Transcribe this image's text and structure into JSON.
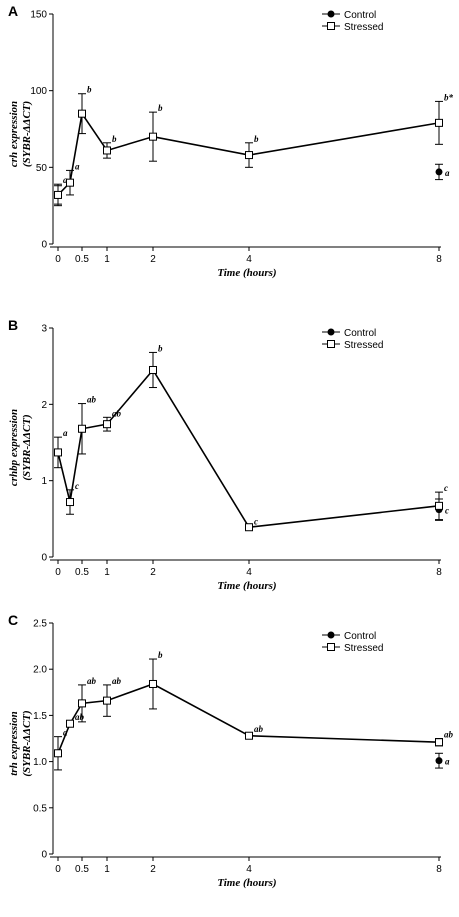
{
  "chart_data": [
    {
      "panel": "A",
      "type": "line",
      "xlabel": "Time (hours)",
      "ylabel_line1": "crh expression",
      "ylabel_line2": "(SYBR-ΔΔCT)",
      "ylim": [
        0,
        150
      ],
      "yticks": [
        0,
        50,
        100,
        150
      ],
      "xticks": [
        0,
        0.5,
        1,
        2,
        4,
        8
      ],
      "xtick_labels": [
        "0",
        "0.5",
        "1",
        "2",
        "4",
        "8"
      ],
      "legend": [
        "Control",
        "Stressed"
      ],
      "series": [
        {
          "name": "Control",
          "marker": "filled-circle",
          "points": [
            {
              "x": 0,
              "y": 32,
              "err": 6,
              "label": ""
            },
            {
              "x": 8,
              "y": 47,
              "err": 5,
              "label": "a"
            }
          ]
        },
        {
          "name": "Stressed",
          "marker": "open-square",
          "points": [
            {
              "x": 0,
              "y": 32,
              "err": 7,
              "label": "a"
            },
            {
              "x": 0.25,
              "y": 40,
              "err": 8,
              "label": "a"
            },
            {
              "x": 0.5,
              "y": 85,
              "err": 13,
              "label": "b"
            },
            {
              "x": 1,
              "y": 61,
              "err": 5,
              "label": "b"
            },
            {
              "x": 2,
              "y": 70,
              "err": 16,
              "label": "b"
            },
            {
              "x": 4,
              "y": 58,
              "err": 8,
              "label": "b"
            },
            {
              "x": 8,
              "y": 79,
              "err": 14,
              "label": "b*"
            }
          ]
        }
      ]
    },
    {
      "panel": "B",
      "type": "line",
      "xlabel": "Time (hours)",
      "ylabel_line1": "crhbp expression",
      "ylabel_line2": "(SYBR-ΔΔCT)",
      "ylim": [
        0,
        3
      ],
      "yticks": [
        0,
        1,
        2,
        3
      ],
      "xticks": [
        0,
        0.5,
        1,
        2,
        4,
        8
      ],
      "xtick_labels": [
        "0",
        "0.5",
        "1",
        "2",
        "4",
        "8"
      ],
      "legend": [
        "Control",
        "Stressed"
      ],
      "series": [
        {
          "name": "Control",
          "marker": "filled-circle",
          "points": [
            {
              "x": 8,
              "y": 0.62,
              "err": 0.14,
              "label": "c"
            }
          ]
        },
        {
          "name": "Stressed",
          "marker": "open-square",
          "points": [
            {
              "x": 0,
              "y": 1.37,
              "err": 0.2,
              "label": "a"
            },
            {
              "x": 0.25,
              "y": 0.72,
              "err": 0.16,
              "label": "c"
            },
            {
              "x": 0.5,
              "y": 1.68,
              "err": 0.33,
              "label": "ab"
            },
            {
              "x": 1,
              "y": 1.74,
              "err": 0.09,
              "label": "ab"
            },
            {
              "x": 2,
              "y": 2.45,
              "err": 0.23,
              "label": "b"
            },
            {
              "x": 4,
              "y": 0.39,
              "err": 0.02,
              "label": "c"
            },
            {
              "x": 8,
              "y": 0.67,
              "err": 0.18,
              "label": "c"
            }
          ]
        }
      ]
    },
    {
      "panel": "C",
      "type": "line",
      "xlabel": "Time (hours)",
      "ylabel_line1": "trh expression",
      "ylabel_line2": "(SYBR-ΔΔCT)",
      "ylim": [
        0,
        2.5
      ],
      "yticks": [
        0.0,
        0.5,
        1.0,
        1.5,
        2.0,
        2.5
      ],
      "ytick_labels": [
        "0",
        "0.5",
        "1.0",
        "1.5",
        "2.0",
        "2.5"
      ],
      "xticks": [
        0,
        0.5,
        1,
        2,
        4,
        8
      ],
      "xtick_labels": [
        "0",
        "0.5",
        "1",
        "2",
        "4",
        "8"
      ],
      "legend": [
        "Control",
        "Stressed"
      ],
      "series": [
        {
          "name": "Control",
          "marker": "filled-circle",
          "points": [
            {
              "x": 8,
              "y": 1.01,
              "err": 0.08,
              "label": "a"
            }
          ]
        },
        {
          "name": "Stressed",
          "marker": "open-square",
          "points": [
            {
              "x": 0,
              "y": 1.09,
              "err": 0.18,
              "label": "a"
            },
            {
              "x": 0.25,
              "y": 1.41,
              "err": 0.03,
              "label": "ab"
            },
            {
              "x": 0.5,
              "y": 1.63,
              "err": 0.2,
              "label": "ab"
            },
            {
              "x": 1,
              "y": 1.66,
              "err": 0.17,
              "label": "ab"
            },
            {
              "x": 2,
              "y": 1.84,
              "err": 0.27,
              "label": "b"
            },
            {
              "x": 4,
              "y": 1.28,
              "err": 0.03,
              "label": "ab"
            },
            {
              "x": 8,
              "y": 1.21,
              "err": 0.04,
              "label": "ab"
            }
          ]
        }
      ]
    }
  ]
}
